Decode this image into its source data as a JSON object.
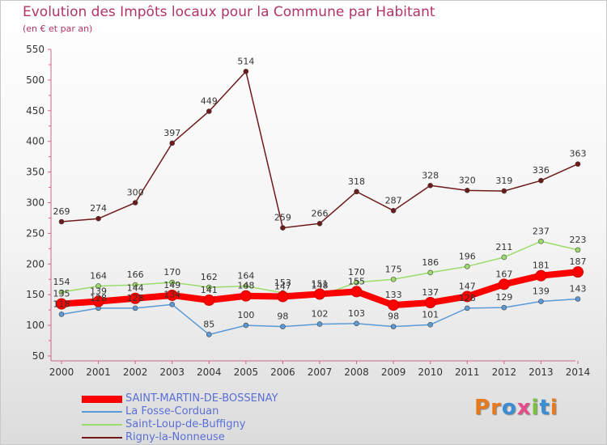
{
  "chart_data": {
    "type": "line",
    "title": "Evolution des Impôts locaux pour la Commune par Habitant",
    "subtitle": "(en € et par an)",
    "categories": [
      "2000",
      "2001",
      "2002",
      "2003",
      "2004",
      "2005",
      "2006",
      "2007",
      "2008",
      "2009",
      "2010",
      "2011",
      "2012",
      "2013",
      "2014"
    ],
    "ylim": [
      50,
      550
    ],
    "yticks": [
      50,
      100,
      150,
      200,
      250,
      300,
      350,
      400,
      450,
      500,
      550
    ],
    "series": [
      {
        "name": "Rigny-la-Nonneuse",
        "color": "#6e1a1a",
        "values": [
          269,
          274,
          300,
          397,
          449,
          514,
          259,
          266,
          318,
          287,
          328,
          320,
          319,
          336,
          363
        ]
      },
      {
        "name": "Saint-Loup-de-Buffigny",
        "color": "#9bdc6a",
        "values": [
          154,
          164,
          166,
          170,
          162,
          164,
          153,
          148,
          170,
          175,
          186,
          196,
          211,
          237,
          223
        ]
      },
      {
        "name": "La Fosse-Corduan",
        "color": "#5a9ad6",
        "values": [
          118,
          128,
          128,
          134,
          85,
          100,
          98,
          102,
          103,
          98,
          101,
          128,
          129,
          139,
          143
        ]
      },
      {
        "name": "SAINT-MARTIN-DE-BOSSENAY",
        "color": "#ff0000",
        "values": [
          135,
          139,
          144,
          149,
          141,
          148,
          147,
          151,
          155,
          133,
          137,
          147,
          167,
          181,
          187
        ]
      }
    ]
  },
  "legend": [
    {
      "label": "SAINT-MARTIN-DE-BOSSENAY",
      "color": "#ff0000"
    },
    {
      "label": "La Fosse-Corduan",
      "color": "#5a9ad6"
    },
    {
      "label": "Saint-Loup-de-Buffigny",
      "color": "#9bdc6a"
    },
    {
      "label": "Rigny-la-Nonneuse",
      "color": "#6e1a1a"
    }
  ],
  "logo": {
    "text": "Proxiti"
  }
}
